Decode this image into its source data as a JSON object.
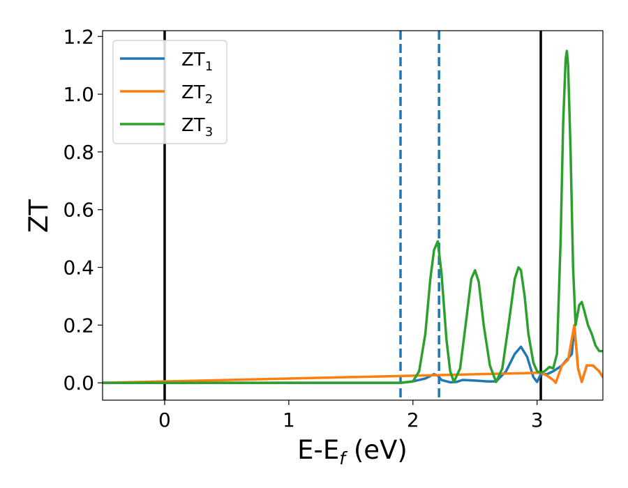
{
  "chart_data": {
    "type": "line",
    "xlabel_main": "E-E",
    "xlabel_sub": "f",
    "xlabel_unit": " (eV)",
    "ylabel": "ZT",
    "xlim": [
      -0.5,
      3.53
    ],
    "ylim": [
      -0.06,
      1.22
    ],
    "x_ticks": [
      0,
      1,
      2,
      3
    ],
    "x_tick_labels": [
      "0",
      "1",
      "2",
      "3"
    ],
    "y_ticks": [
      0.0,
      0.2,
      0.4,
      0.6,
      0.8,
      1.0,
      1.2
    ],
    "y_tick_labels": [
      "0.0",
      "0.2",
      "0.4",
      "0.6",
      "0.8",
      "1.0",
      "1.2"
    ],
    "grid": false,
    "legend_position": "top-left",
    "vertical_lines": [
      {
        "x": 0.0,
        "style": "solid",
        "color": "#000000"
      },
      {
        "x": 3.03,
        "style": "solid",
        "color": "#000000"
      },
      {
        "x": 1.9,
        "style": "dashed",
        "color": "#1f77b4"
      },
      {
        "x": 2.21,
        "style": "dashed",
        "color": "#1f77b4"
      }
    ],
    "series": [
      {
        "name": "ZT",
        "subscript": "1",
        "color": "#1f77b4",
        "x": [
          -0.5,
          1.9,
          2.0,
          2.1,
          2.17,
          2.2,
          2.23,
          2.3,
          2.35,
          2.4,
          2.5,
          2.6,
          2.67,
          2.75,
          2.82,
          2.87,
          2.92,
          2.97,
          3.0,
          3.03,
          3.08,
          3.13,
          3.2,
          3.24,
          3.28,
          3.3,
          3.33,
          3.36,
          3.4,
          3.45,
          3.5,
          3.53
        ],
        "y": [
          0.0,
          0.0,
          0.005,
          0.015,
          0.03,
          0.025,
          0.01,
          0.002,
          0.003,
          0.01,
          0.008,
          0.005,
          0.005,
          0.04,
          0.1,
          0.125,
          0.09,
          0.02,
          0.003,
          0.03,
          0.03,
          0.04,
          0.06,
          0.08,
          0.1,
          0.2,
          0.05,
          0.003,
          0.06,
          0.06,
          0.04,
          0.02
        ]
      },
      {
        "name": "ZT",
        "subscript": "2",
        "color": "#ff7f0e",
        "x": [
          -0.5,
          3.03,
          3.08,
          3.13,
          3.15,
          3.2,
          3.25,
          3.3,
          3.33,
          3.36,
          3.4,
          3.45,
          3.5,
          3.53
        ],
        "y": [
          0.0,
          0.035,
          0.025,
          0.01,
          0.0,
          0.06,
          0.08,
          0.2,
          0.05,
          0.003,
          0.06,
          0.06,
          0.04,
          0.02
        ]
      },
      {
        "name": "ZT",
        "subscript": "3",
        "color": "#2ca02c",
        "x": [
          -0.5,
          1.9,
          2.0,
          2.05,
          2.1,
          2.14,
          2.17,
          2.2,
          2.23,
          2.27,
          2.3,
          2.33,
          2.38,
          2.43,
          2.47,
          2.5,
          2.53,
          2.57,
          2.62,
          2.67,
          2.72,
          2.77,
          2.82,
          2.85,
          2.87,
          2.9,
          2.93,
          2.97,
          3.0,
          3.03,
          3.06,
          3.1,
          3.13,
          3.16,
          3.19,
          3.21,
          3.23,
          3.24,
          3.25,
          3.27,
          3.29,
          3.31,
          3.34,
          3.36,
          3.38,
          3.41,
          3.44,
          3.47,
          3.5,
          3.53
        ],
        "y": [
          0.0,
          0.0,
          0.005,
          0.04,
          0.17,
          0.36,
          0.46,
          0.49,
          0.38,
          0.15,
          0.04,
          0.003,
          0.05,
          0.22,
          0.36,
          0.39,
          0.35,
          0.2,
          0.06,
          0.003,
          0.05,
          0.2,
          0.36,
          0.4,
          0.39,
          0.3,
          0.17,
          0.07,
          0.04,
          0.035,
          0.04,
          0.055,
          0.05,
          0.1,
          0.5,
          0.9,
          1.12,
          1.15,
          1.1,
          0.8,
          0.4,
          0.2,
          0.27,
          0.28,
          0.25,
          0.2,
          0.17,
          0.13,
          0.11,
          0.11
        ]
      }
    ]
  }
}
